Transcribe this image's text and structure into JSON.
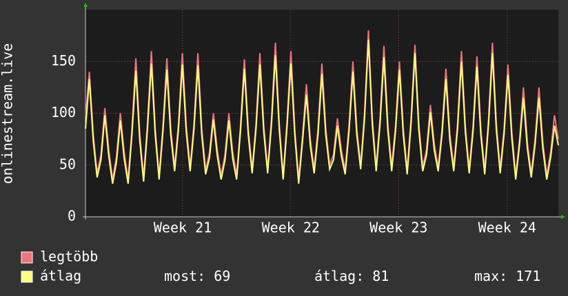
{
  "chart_data": {
    "type": "line",
    "y_label": "onlinestream.live",
    "xlim": [
      0,
      30.5
    ],
    "ylim": [
      0,
      200
    ],
    "xticks": [
      {
        "value": 6.27,
        "label": "Week 21"
      },
      {
        "value": 13.24,
        "label": "Week 22"
      },
      {
        "value": 20.2,
        "label": "Week 23"
      },
      {
        "value": 27.2,
        "label": "Week 24"
      }
    ],
    "yticks": [
      0,
      50,
      100,
      150
    ],
    "grid": true,
    "x": [
      0,
      0.25,
      0.5,
      0.75,
      1,
      1.25,
      1.5,
      1.75,
      2,
      2.25,
      2.5,
      2.75,
      3,
      3.25,
      3.5,
      3.75,
      4,
      4.25,
      4.5,
      4.75,
      5,
      5.25,
      5.5,
      5.75,
      6,
      6.25,
      6.5,
      6.75,
      7,
      7.25,
      7.5,
      7.75,
      8,
      8.25,
      8.5,
      8.75,
      9,
      9.25,
      9.5,
      9.75,
      10,
      10.25,
      10.5,
      10.75,
      11,
      11.25,
      11.5,
      11.75,
      12,
      12.25,
      12.5,
      12.75,
      13,
      13.25,
      13.5,
      13.75,
      14,
      14.25,
      14.5,
      14.75,
      15,
      15.25,
      15.5,
      15.75,
      16,
      16.25,
      16.5,
      16.75,
      17,
      17.25,
      17.5,
      17.75,
      18,
      18.25,
      18.5,
      18.75,
      19,
      19.25,
      19.5,
      19.75,
      20,
      20.25,
      20.5,
      20.75,
      21,
      21.25,
      21.5,
      21.75,
      22,
      22.25,
      22.5,
      22.75,
      23,
      23.25,
      23.5,
      23.75,
      24,
      24.25,
      24.5,
      24.75,
      25,
      25.25,
      25.5,
      25.75,
      26,
      26.25,
      26.5,
      26.75,
      27,
      27.25,
      27.5,
      27.75,
      28,
      28.25,
      28.5,
      28.75,
      29,
      29.25,
      29.5,
      29.75,
      30,
      30.25,
      30.5
    ],
    "series": [
      {
        "name": "legtöbb",
        "color": "#f0737b",
        "values": [
          95,
          140,
          80,
          42,
          60,
          105,
          65,
          36,
          58,
          100,
          62,
          36,
          85,
          153,
          80,
          38,
          90,
          160,
          85,
          40,
          88,
          153,
          85,
          48,
          90,
          158,
          88,
          48,
          90,
          158,
          85,
          45,
          62,
          100,
          65,
          40,
          60,
          100,
          62,
          40,
          88,
          152,
          85,
          46,
          90,
          158,
          88,
          46,
          95,
          168,
          90,
          40,
          92,
          160,
          85,
          36,
          78,
          128,
          75,
          46,
          85,
          148,
          85,
          50,
          60,
          95,
          65,
          45,
          88,
          150,
          85,
          50,
          100,
          180,
          95,
          48,
          95,
          165,
          90,
          48,
          88,
          150,
          85,
          45,
          95,
          166,
          90,
          48,
          65,
          108,
          70,
          48,
          85,
          143,
          80,
          48,
          90,
          160,
          88,
          46,
          88,
          155,
          85,
          45,
          95,
          168,
          90,
          46,
          85,
          147,
          82,
          40,
          75,
          125,
          72,
          42,
          75,
          125,
          72,
          40,
          62,
          98,
          75
        ]
      },
      {
        "name": "átlag",
        "color": "#ffff80",
        "values": [
          85,
          133,
          74,
          38,
          55,
          98,
          59,
          32,
          53,
          93,
          56,
          32,
          80,
          141,
          74,
          34,
          85,
          148,
          79,
          36,
          83,
          142,
          79,
          44,
          85,
          147,
          82,
          44,
          85,
          146,
          79,
          41,
          57,
          94,
          59,
          36,
          55,
          93,
          56,
          36,
          83,
          143,
          79,
          42,
          85,
          147,
          82,
          42,
          90,
          156,
          84,
          36,
          87,
          148,
          79,
          32,
          73,
          118,
          69,
          42,
          80,
          138,
          79,
          46,
          55,
          88,
          59,
          41,
          83,
          140,
          79,
          46,
          95,
          171,
          89,
          44,
          90,
          154,
          84,
          44,
          83,
          142,
          79,
          41,
          90,
          158,
          84,
          44,
          60,
          101,
          64,
          44,
          80,
          133,
          74,
          44,
          85,
          150,
          82,
          42,
          83,
          145,
          79,
          41,
          90,
          158,
          84,
          42,
          80,
          137,
          76,
          36,
          70,
          115,
          66,
          38,
          70,
          115,
          66,
          36,
          57,
          88,
          69
        ]
      }
    ],
    "stats": [
      {
        "label": "most:",
        "value": 69
      },
      {
        "label": "átlag:",
        "value": 81
      },
      {
        "label": "max:",
        "value": 171
      }
    ]
  }
}
